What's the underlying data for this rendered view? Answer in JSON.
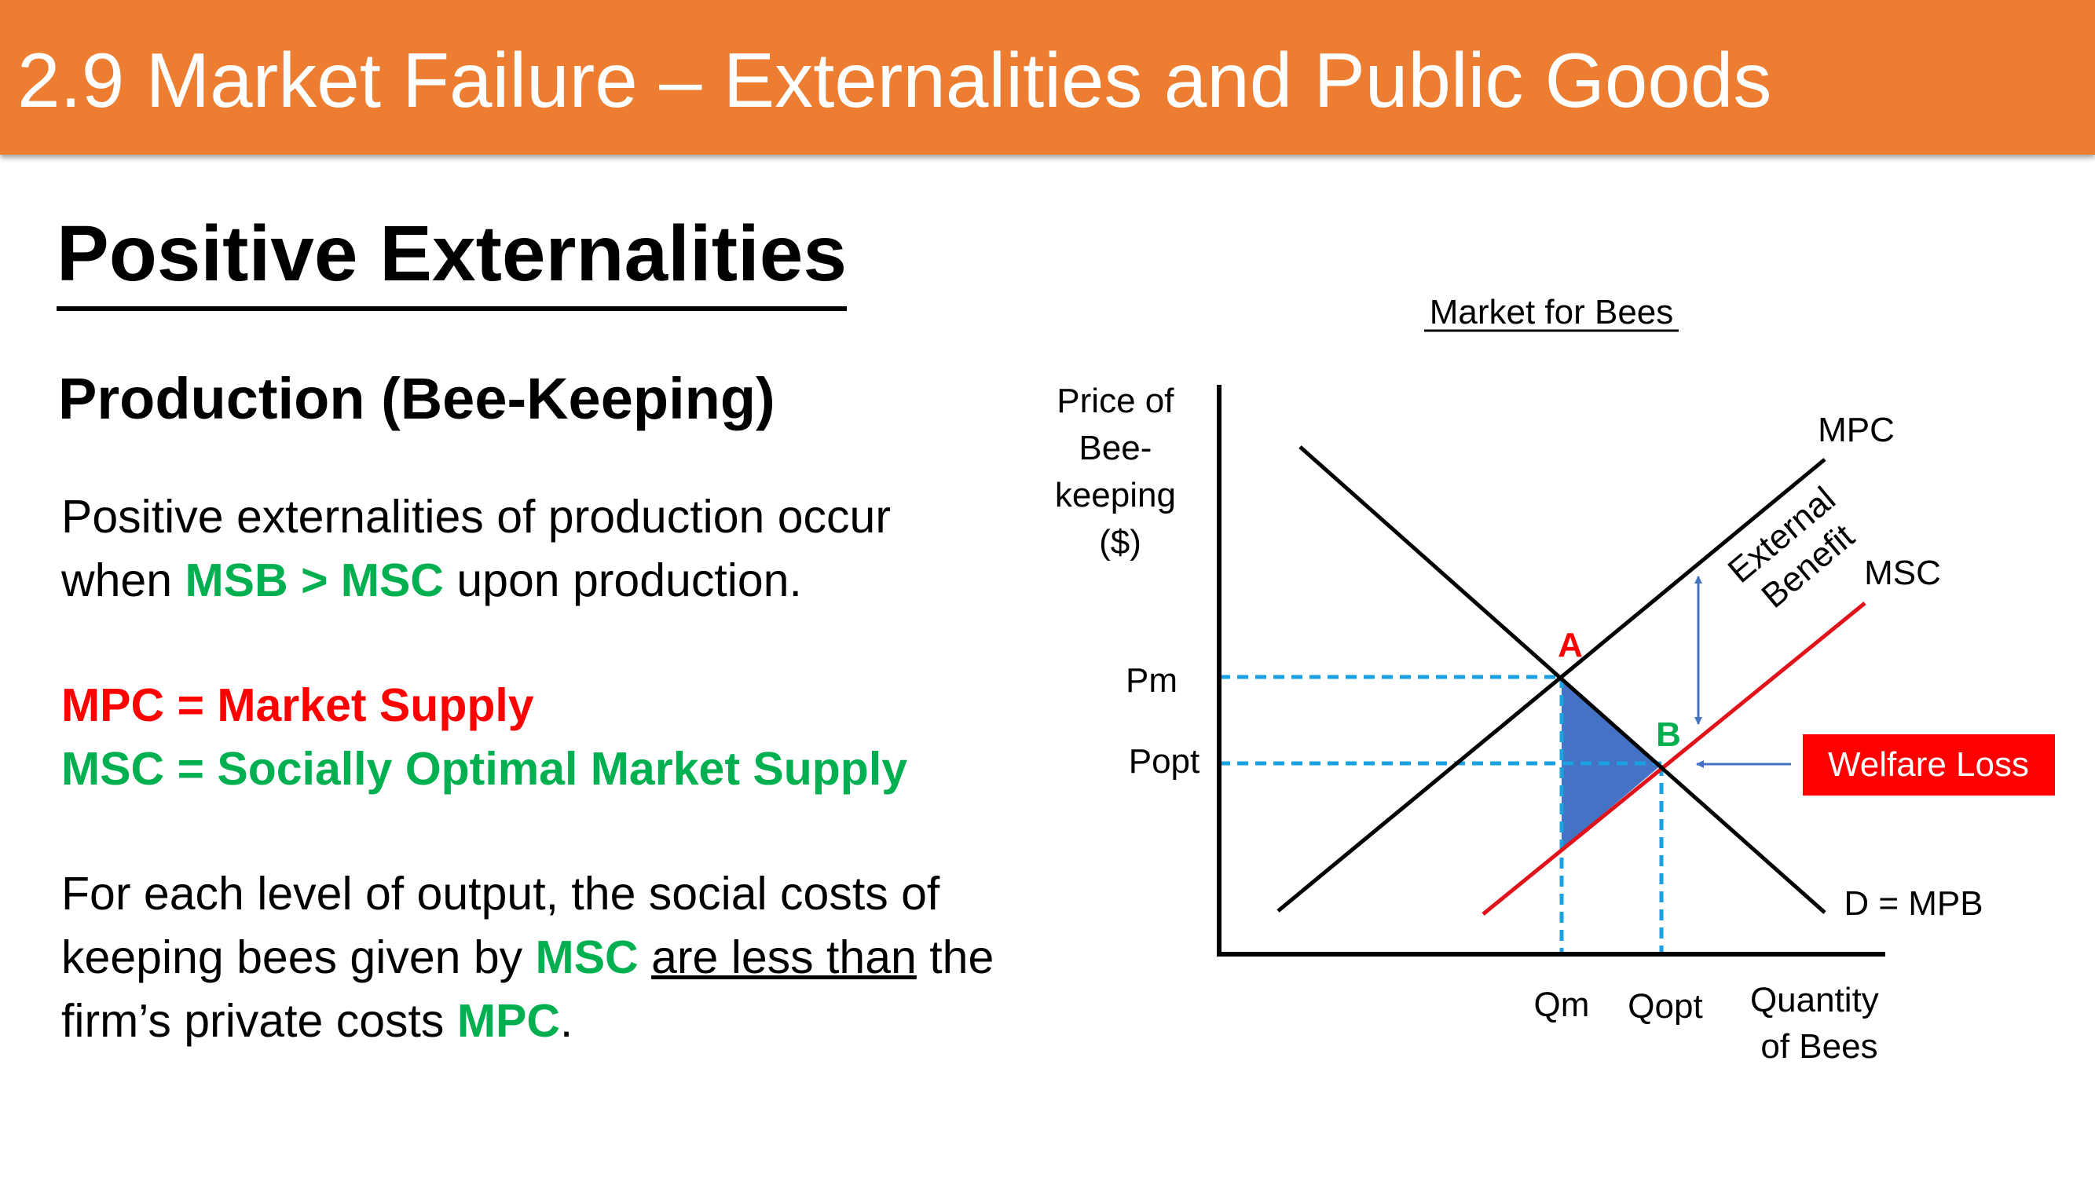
{
  "header": {
    "title": "2.9 Market Failure – Externalities and Public Goods"
  },
  "section": {
    "heading": "Positive Externalities",
    "subheading": "Production (Bee-Keeping)"
  },
  "body": {
    "para1": {
      "line1": "Positive externalities of production occur",
      "line2_pre": "when ",
      "line2_em": "MSB > MSC",
      "line2_post": " upon production."
    },
    "definitions": {
      "mpc": "MPC = Market Supply",
      "msc": "MSC = Socially Optimal Market Supply"
    },
    "para2": {
      "line1": "For each level of output, the social costs of",
      "line2_pre": "keeping bees given by ",
      "line2_em": "MSC",
      "line2_mid": " ",
      "line2_ul": "are less than",
      "line2_post": " the",
      "line3_pre": "firm’s private costs ",
      "line3_em": "MPC",
      "line3_post": "."
    }
  },
  "chart_data": {
    "type": "line",
    "title": "Market for Bees",
    "ylabel": [
      "Price of",
      "Bee-",
      "keeping",
      "($)"
    ],
    "xlabel": [
      "Quantity",
      "of Bees"
    ],
    "price_labels": [
      "Pm",
      "Popt"
    ],
    "quantity_labels": [
      "Qm",
      "Qopt"
    ],
    "curves": [
      {
        "name": "MPC",
        "color": "#000000"
      },
      {
        "name": "MSC",
        "color": "#E0131B"
      },
      {
        "name": "D = MPB",
        "color": "#000000"
      }
    ],
    "points": {
      "a": "A",
      "b": "B"
    },
    "annotations": {
      "external_benefit": [
        "External",
        "Benefit"
      ],
      "welfare_loss": "Welfare Loss"
    },
    "colors": {
      "welfare_area": "#4472C4",
      "dashed": "#1BA1E2",
      "arrow": "#4472C4",
      "welfare_box": "#FF0000",
      "point_a": "#FF0000",
      "point_b": "#00B050"
    },
    "grid": false
  }
}
